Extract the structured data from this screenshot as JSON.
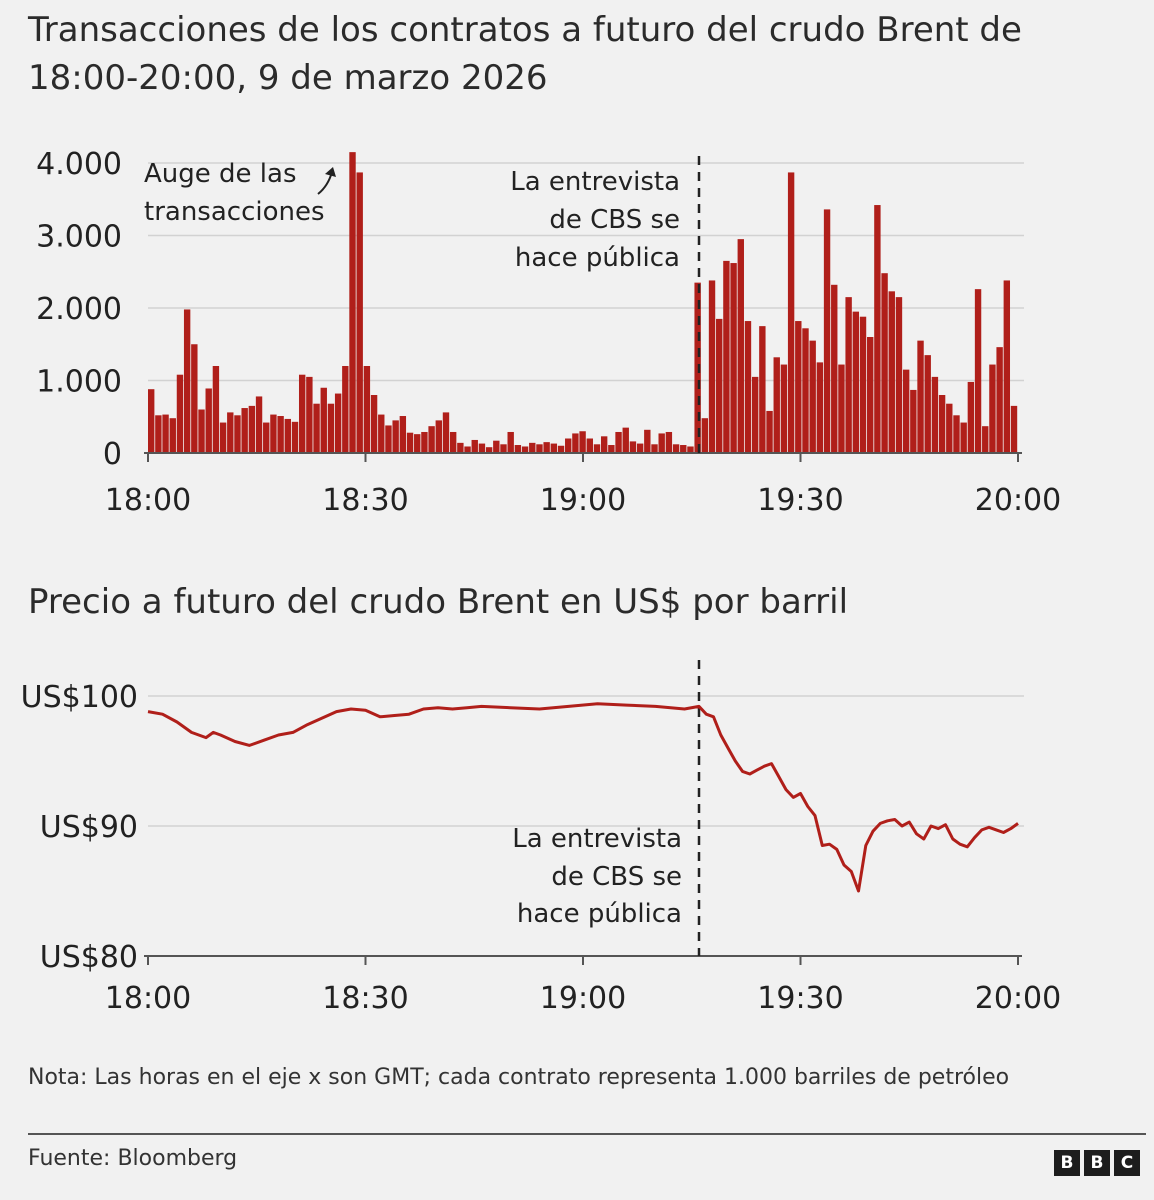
{
  "title1": "Transacciones de los contratos a futuro del crudo Brent de 18:00-20:00, 9 de marzo 2026",
  "title2": "Precio a futuro del crudo Brent en US$ por barril",
  "annotations": {
    "spike_line1": "Auge de las",
    "spike_line2": "transacciones",
    "cbs_line1": "La entrevista",
    "cbs_line2": "de CBS se",
    "cbs_line3": "hace pública"
  },
  "note": "Nota: Las horas en el eje x son GMT; cada contrato representa 1.000 barriles de petróleo",
  "source": "Fuente: Bloomberg",
  "logo": [
    "B",
    "B",
    "C"
  ],
  "colors": {
    "series": "#b01f1a",
    "background": "#f1f1f1"
  },
  "chart_data": [
    {
      "type": "bar",
      "title": "Transacciones de los contratos a futuro del crudo Brent de 18:00-20:00, 9 de marzo 2026",
      "x_unit": "minutes after 18:00",
      "xlim": [
        0,
        120
      ],
      "ylim": [
        0,
        4000
      ],
      "x_ticks": [
        {
          "value": 0,
          "label": "18:00"
        },
        {
          "value": 30,
          "label": "18:30"
        },
        {
          "value": 60,
          "label": "19:00"
        },
        {
          "value": 90,
          "label": "19:30"
        },
        {
          "value": 120,
          "label": "20:00"
        }
      ],
      "y_ticks": [
        {
          "value": 0,
          "label": "0"
        },
        {
          "value": 1000,
          "label": "1.000"
        },
        {
          "value": 2000,
          "label": "2.000"
        },
        {
          "value": 3000,
          "label": "3.000"
        },
        {
          "value": 4000,
          "label": "4.000"
        }
      ],
      "grid": true,
      "event_minute": 76,
      "values": [
        880,
        520,
        530,
        480,
        1080,
        1980,
        1500,
        600,
        890,
        1200,
        420,
        560,
        520,
        620,
        650,
        780,
        420,
        530,
        510,
        470,
        430,
        1080,
        1050,
        680,
        900,
        680,
        820,
        1200,
        4150,
        3870,
        1200,
        800,
        530,
        380,
        450,
        510,
        280,
        260,
        290,
        370,
        450,
        560,
        290,
        140,
        90,
        180,
        130,
        80,
        170,
        120,
        290,
        110,
        90,
        140,
        120,
        150,
        130,
        100,
        200,
        270,
        300,
        200,
        120,
        230,
        110,
        290,
        350,
        160,
        130,
        320,
        120,
        270,
        290,
        120,
        110,
        90,
        2350,
        480,
        2380,
        1850,
        2650,
        2620,
        2950,
        1820,
        1050,
        1750,
        580,
        1320,
        1220,
        3870,
        1820,
        1720,
        1550,
        1250,
        3360,
        2320,
        1220,
        2150,
        1950,
        1880,
        1600,
        3420,
        2480,
        2230,
        2150,
        1150,
        870,
        1550,
        1350,
        1050,
        800,
        680,
        520,
        420,
        980,
        2260,
        370,
        1220,
        1460,
        2380,
        650
      ]
    },
    {
      "type": "line",
      "title": "Precio a futuro del crudo Brent en US$ por barril",
      "x_unit": "minutes after 18:00",
      "xlim": [
        0,
        120
      ],
      "ylim": [
        80,
        100
      ],
      "x_ticks": [
        {
          "value": 0,
          "label": "18:00"
        },
        {
          "value": 30,
          "label": "18:30"
        },
        {
          "value": 60,
          "label": "19:00"
        },
        {
          "value": 90,
          "label": "19:30"
        },
        {
          "value": 120,
          "label": "20:00"
        }
      ],
      "y_ticks": [
        {
          "value": 100,
          "label": "US$100"
        },
        {
          "value": 90,
          "label": "US$90"
        },
        {
          "value": 80,
          "label": "US$80"
        }
      ],
      "grid": true,
      "event_minute": 76,
      "x": [
        0,
        2,
        4,
        6,
        8,
        9,
        10,
        12,
        14,
        16,
        18,
        20,
        22,
        24,
        26,
        28,
        30,
        32,
        34,
        36,
        38,
        40,
        42,
        44,
        46,
        50,
        54,
        58,
        62,
        66,
        70,
        74,
        76,
        77,
        78,
        79,
        80,
        81,
        82,
        83,
        84,
        85,
        86,
        87,
        88,
        89,
        90,
        91,
        92,
        93,
        94,
        95,
        96,
        97,
        98,
        99,
        100,
        101,
        102,
        103,
        104,
        105,
        106,
        107,
        108,
        109,
        110,
        111,
        112,
        113,
        114,
        115,
        116,
        117,
        118,
        119,
        120
      ],
      "y": [
        98.8,
        98.6,
        98.0,
        97.2,
        96.8,
        97.2,
        97.0,
        96.5,
        96.2,
        96.6,
        97.0,
        97.2,
        97.8,
        98.3,
        98.8,
        99.0,
        98.9,
        98.4,
        98.5,
        98.6,
        99.0,
        99.1,
        99.0,
        99.1,
        99.2,
        99.1,
        99.0,
        99.2,
        99.4,
        99.3,
        99.2,
        99.0,
        99.2,
        98.6,
        98.4,
        97.0,
        96.0,
        95.0,
        94.2,
        94.0,
        94.3,
        94.6,
        94.8,
        93.8,
        92.8,
        92.2,
        92.5,
        91.5,
        90.8,
        88.5,
        88.6,
        88.2,
        87.0,
        86.5,
        85.0,
        88.5,
        89.6,
        90.2,
        90.4,
        90.5,
        90.0,
        90.3,
        89.4,
        89.0,
        90.0,
        89.8,
        90.1,
        89.0,
        88.6,
        88.4,
        89.1,
        89.7,
        89.9,
        89.7,
        89.5,
        89.8,
        90.2
      ]
    }
  ]
}
